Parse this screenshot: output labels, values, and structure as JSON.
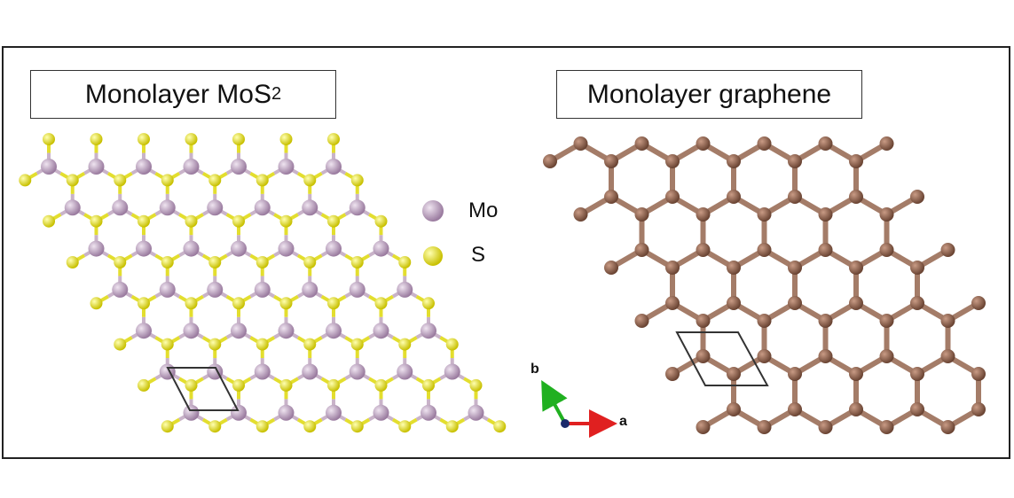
{
  "mos2_panel": {
    "title_main": "Monolayer MoS",
    "title_sub": "2",
    "legend": [
      {
        "label": "Mo",
        "color": "#b79bbc"
      },
      {
        "label": "S",
        "color": "#e9e61a"
      }
    ]
  },
  "graphene_panel": {
    "title": "Monolayer graphene",
    "atom_color": "#8a5e4b"
  },
  "axes_indicator": {
    "a_label": "a",
    "b_label": "b",
    "a_color": "#e02020",
    "b_color": "#20b020",
    "c_color": "#1a2a6b"
  },
  "colors": {
    "frame": "#222222",
    "mo_bond": "#c9b3c9",
    "s_bond": "#e3de2e",
    "graphene_bond": "#a47c68",
    "unit_cell": "#333333"
  }
}
